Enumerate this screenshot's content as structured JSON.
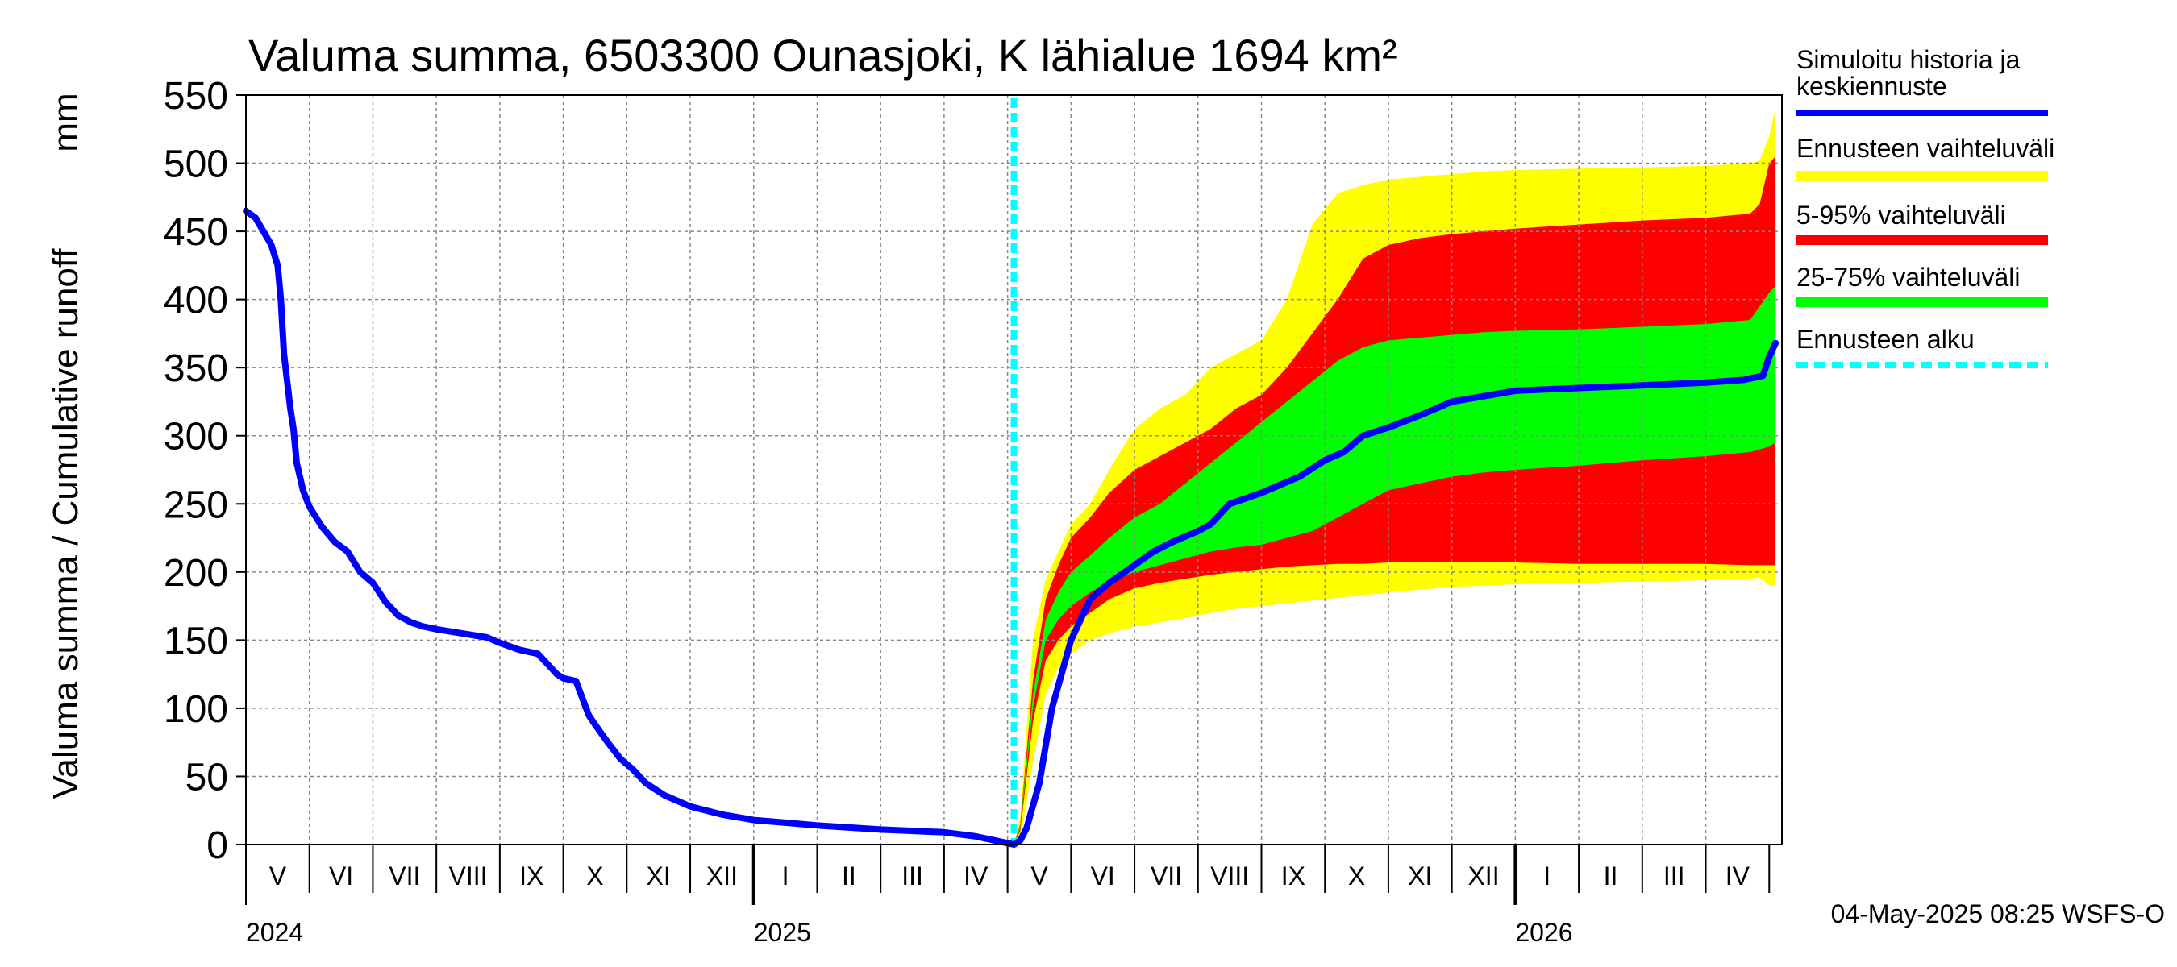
{
  "chart_data": {
    "type": "area",
    "title": "Valuma summa, 6503300 Ounasjoki, K lähialue 1694 km²",
    "ylabel": "Valuma summa / Cumulative runoff",
    "yunit": "mm",
    "ylim": [
      0,
      550
    ],
    "yticks": [
      0,
      50,
      100,
      150,
      200,
      250,
      300,
      350,
      400,
      450,
      500,
      550
    ],
    "grid": true,
    "x_start_month": 0,
    "x_end_month": 24.2,
    "month_labels": [
      "V",
      "VI",
      "VII",
      "VIII",
      "IX",
      "X",
      "XI",
      "XII",
      "I",
      "II",
      "III",
      "IV",
      "V",
      "VI",
      "VII",
      "VIII",
      "IX",
      "X",
      "XI",
      "XII",
      "I",
      "II",
      "III",
      "IV"
    ],
    "year_labels": [
      {
        "label": "2024",
        "month": 0
      },
      {
        "label": "2025",
        "month": 8
      },
      {
        "label": "2026",
        "month": 20
      }
    ],
    "forecast_start_month": 12.1,
    "history": {
      "name": "Simuloitu historia ja keskiennuste",
      "color": "#0000ff",
      "x": [
        0.0,
        0.15,
        0.4,
        0.5,
        0.55,
        0.6,
        0.7,
        0.75,
        0.8,
        0.9,
        1.0,
        1.2,
        1.4,
        1.6,
        1.8,
        2.0,
        2.2,
        2.4,
        2.6,
        2.8,
        3.0,
        3.4,
        3.8,
        4.0,
        4.3,
        4.6,
        4.8,
        4.9,
        5.0,
        5.2,
        5.4,
        5.5,
        5.7,
        5.9,
        6.1,
        6.3,
        6.6,
        7.0,
        7.5,
        8.0,
        8.5,
        9.0,
        10.0,
        11.0,
        11.5,
        11.8,
        12.0,
        12.1,
        12.2,
        12.3,
        12.5,
        12.7,
        13.0,
        13.3,
        13.6,
        14.0,
        14.3,
        14.6,
        15.0,
        15.2,
        15.5,
        16.0,
        16.3,
        16.6,
        17.0,
        17.3,
        17.6,
        18.0,
        18.5,
        19.0,
        20.0,
        21.0,
        22.0,
        23.0,
        23.6,
        23.9,
        24.0,
        24.1
      ],
      "values": [
        465,
        460,
        440,
        425,
        400,
        360,
        320,
        305,
        280,
        260,
        248,
        233,
        222,
        215,
        200,
        192,
        178,
        168,
        163,
        160,
        158,
        155,
        152,
        148,
        143,
        140,
        130,
        125,
        122,
        120,
        95,
        88,
        75,
        63,
        55,
        45,
        36,
        28,
        22,
        18,
        16,
        14,
        11,
        9,
        6,
        3,
        1,
        0,
        3,
        12,
        45,
        100,
        150,
        180,
        192,
        205,
        215,
        222,
        230,
        235,
        250,
        258,
        264,
        270,
        282,
        288,
        300,
        306,
        315,
        325,
        333,
        335,
        337,
        339,
        341,
        344,
        358,
        368
      ]
    },
    "bands": {
      "x": [
        12.1,
        12.2,
        12.4,
        12.6,
        12.8,
        13.0,
        13.3,
        13.6,
        14.0,
        14.4,
        14.8,
        15.2,
        15.6,
        16.0,
        16.4,
        16.8,
        17.2,
        17.6,
        18.0,
        18.5,
        19.0,
        19.5,
        20.0,
        21.0,
        22.0,
        23.0,
        23.7,
        23.85,
        24.0,
        24.1
      ],
      "min": [
        0,
        2,
        60,
        110,
        130,
        140,
        150,
        155,
        160,
        163,
        166,
        170,
        173,
        175,
        177,
        179,
        181,
        183,
        185,
        187,
        189,
        190,
        191,
        192,
        193,
        194,
        195,
        196,
        190,
        190
      ],
      "max": [
        0,
        20,
        150,
        195,
        215,
        235,
        250,
        275,
        305,
        320,
        330,
        350,
        360,
        370,
        400,
        455,
        478,
        484,
        488,
        490,
        492,
        494,
        495,
        496,
        497,
        498,
        500,
        502,
        520,
        540
      ],
      "p5": [
        0,
        10,
        90,
        135,
        150,
        160,
        170,
        180,
        188,
        192,
        195,
        198,
        200,
        202,
        204,
        205,
        206,
        206,
        207,
        207,
        207,
        207,
        207,
        206,
        206,
        206,
        205,
        205,
        205,
        205
      ],
      "p95": [
        0,
        15,
        120,
        180,
        205,
        225,
        240,
        258,
        275,
        285,
        295,
        305,
        320,
        330,
        350,
        375,
        400,
        430,
        440,
        445,
        448,
        450,
        452,
        455,
        458,
        460,
        463,
        470,
        500,
        505
      ],
      "p25": [
        0,
        12,
        100,
        150,
        165,
        175,
        185,
        193,
        200,
        205,
        210,
        215,
        218,
        220,
        225,
        230,
        240,
        250,
        260,
        265,
        270,
        273,
        275,
        278,
        282,
        285,
        288,
        290,
        292,
        295
      ],
      "p75": [
        0,
        14,
        110,
        165,
        185,
        200,
        212,
        225,
        240,
        250,
        265,
        280,
        295,
        310,
        325,
        340,
        355,
        365,
        370,
        372,
        374,
        376,
        377,
        378,
        380,
        382,
        385,
        395,
        405,
        410
      ]
    },
    "legend": [
      {
        "label": "Simuloitu historia ja",
        "label2": "keskiennuste",
        "color": "#0000ff",
        "style": "line"
      },
      {
        "label": "Ennusteen vaihteluväli",
        "color": "#ffff00",
        "style": "band"
      },
      {
        "label": "5-95% vaihteluväli",
        "color": "#ff0000",
        "style": "band"
      },
      {
        "label": "25-75% vaihteluväli",
        "color": "#00ff00",
        "style": "band"
      },
      {
        "label": "Ennusteen alku",
        "color": "#00ffff",
        "style": "dashed"
      }
    ],
    "footer": "04-May-2025 08:25 WSFS-O"
  }
}
